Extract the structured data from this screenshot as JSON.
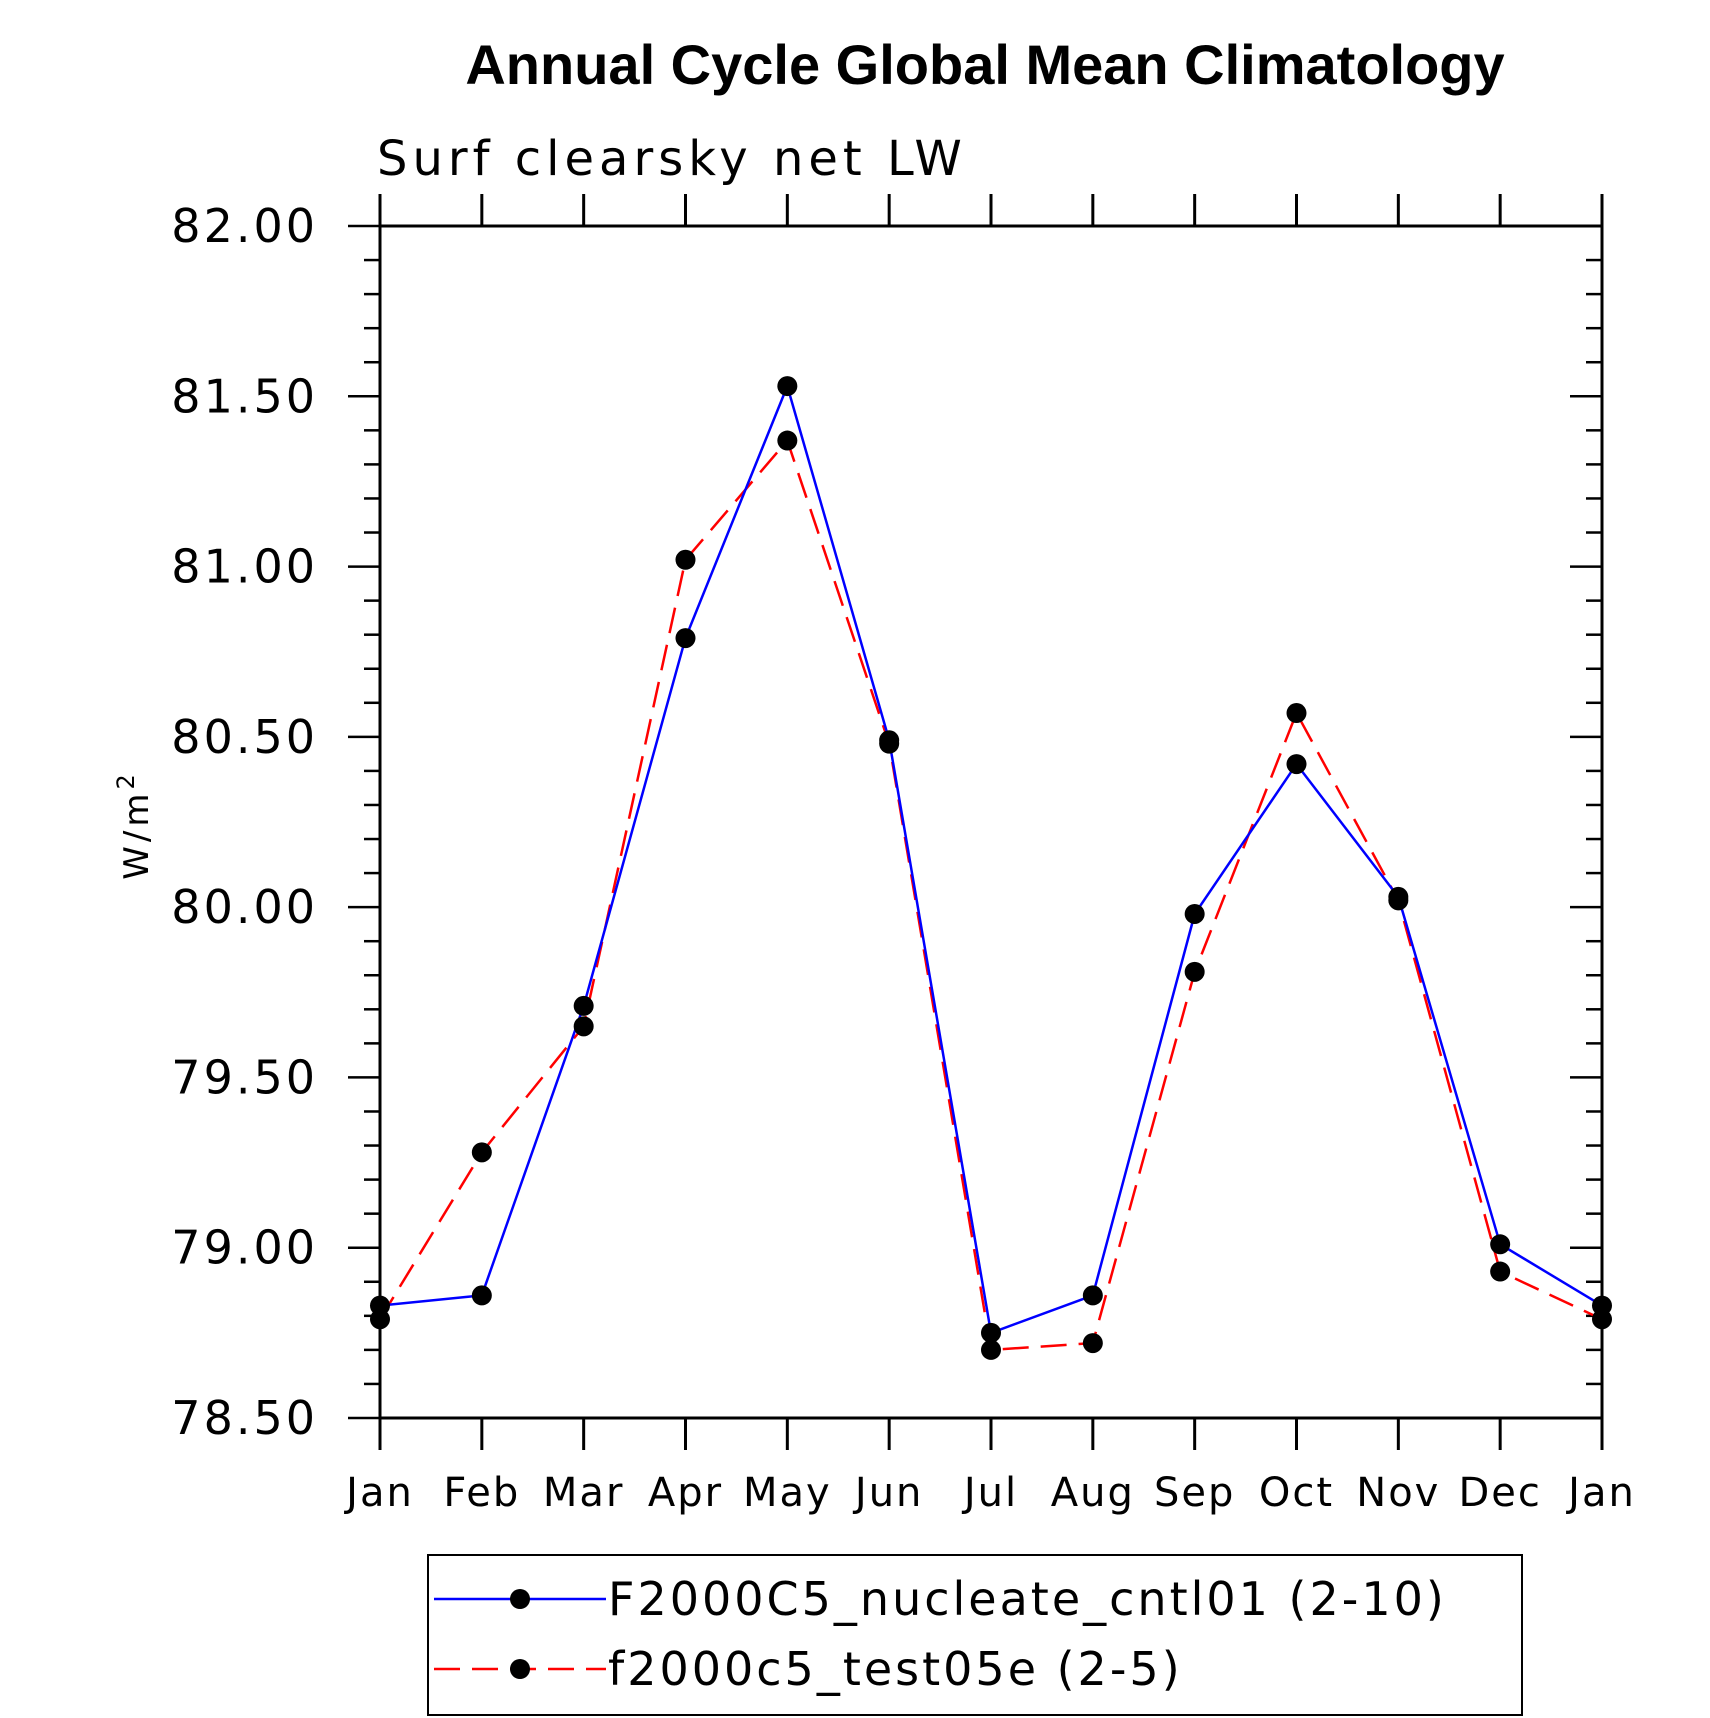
{
  "chart_data": {
    "type": "line",
    "title": "Annual Cycle Global Mean Climatology",
    "subtitle": "Surf clearsky net LW",
    "ylabel_base": "W/m",
    "ylabel_sup": "2",
    "xlabel": "",
    "ylim": [
      78.5,
      82.0
    ],
    "yticks": [
      "82.00",
      "81.50",
      "81.00",
      "80.50",
      "80.00",
      "79.50",
      "79.00",
      "78.50"
    ],
    "categories": [
      "Jan",
      "Feb",
      "Mar",
      "Apr",
      "May",
      "Jun",
      "Jul",
      "Aug",
      "Sep",
      "Oct",
      "Nov",
      "Dec",
      "Jan"
    ],
    "series": [
      {
        "name": "F2000C5_nucleate_cntl01 (2-10)",
        "color": "#0000ff",
        "dash": "solid",
        "values": [
          78.83,
          78.86,
          79.71,
          80.79,
          81.53,
          80.49,
          78.75,
          78.86,
          79.98,
          80.42,
          80.03,
          79.01,
          78.83
        ]
      },
      {
        "name": "f2000c5_test05e (2-5)",
        "color": "#ff0000",
        "dash": "dashed",
        "values": [
          78.79,
          79.28,
          79.65,
          81.02,
          81.37,
          80.48,
          78.7,
          78.72,
          79.81,
          80.57,
          80.02,
          78.93,
          78.79
        ]
      }
    ]
  }
}
